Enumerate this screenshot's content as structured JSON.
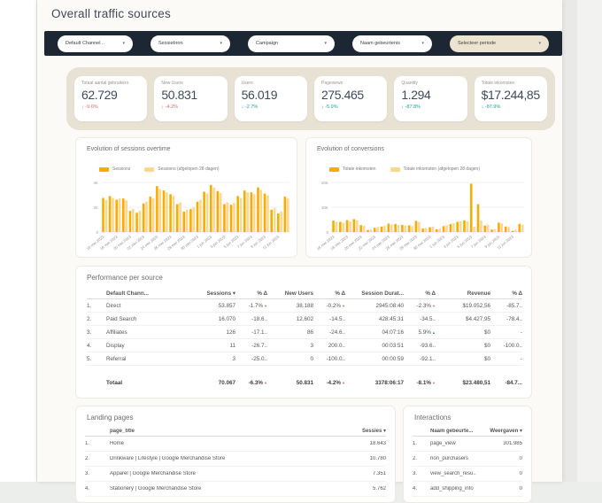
{
  "page": {
    "title": "Overall traffic sources"
  },
  "colors": {
    "navy": "#1d2633",
    "beige_band": "#e7e2d4",
    "pill_beige": "#ece4d0",
    "orange": "#f9ab00",
    "orange_light": "#fbd78f",
    "red": "#dd6a66",
    "green": "#14a68e"
  },
  "filters": [
    {
      "label": "Default Channel ..",
      "style": "white",
      "width": 85
    },
    {
      "label": "Sessiebron",
      "style": "white",
      "width": 90
    },
    {
      "label": "Campaign",
      "style": "white",
      "width": 98
    },
    {
      "label": "Naam gebeurtenis",
      "style": "white",
      "width": 90
    },
    {
      "label": "Selecteer periode",
      "style": "beige",
      "width": 112
    }
  ],
  "kpis": [
    {
      "label": "Totaal aantal gebruikers",
      "value": "62.729",
      "arrow": "↓",
      "delta": "-9.6%",
      "tone": "red"
    },
    {
      "label": "New Users",
      "value": "50.831",
      "arrow": "↓",
      "delta": "-4.2%",
      "tone": "red"
    },
    {
      "label": "Users",
      "value": "56.019",
      "arrow": "↓",
      "delta": "-2.7%",
      "tone": "green"
    },
    {
      "label": "Pageviews",
      "value": "275.465",
      "arrow": "↓",
      "delta": "-5.9%",
      "tone": "green"
    },
    {
      "label": "Quantity",
      "value": "1.294",
      "arrow": "↓",
      "delta": "-87.8%",
      "tone": "green"
    },
    {
      "label": "Totale inkomsten",
      "value": "$17.244,85",
      "arrow": "↓",
      "delta": "-87.9%",
      "tone": "green"
    }
  ],
  "chart_data": [
    {
      "type": "bar",
      "title": "Evolution of sessions overtime",
      "x": [
        "16 mei 2023",
        "17 mei 2023",
        "18 mei 2023",
        "19 mei 2023",
        "20 mei 2023",
        "21 mei 2023",
        "22 mei 2023",
        "23 mei 2023",
        "24 mei 2023",
        "25 mei 2023",
        "26 mei 2023",
        "27 mei 2023",
        "28 mei 2023",
        "29 mei 2023",
        "30 mei 2023",
        "31 mei 2023",
        "1 jun 2023",
        "2 jun 2023",
        "3 jun 2023",
        "4 jun 2023",
        "5 jun 2023",
        "6 jun 2023",
        "7 jun 2023",
        "8 jun 2023",
        "9 jun 2023",
        "10 jun 2023",
        "11 jun 2023",
        "12 jun 2023"
      ],
      "x_tick_every": 2,
      "series": [
        {
          "name": "Sessions",
          "values": [
            2750,
            2900,
            2600,
            2700,
            1700,
            1550,
            2300,
            2850,
            3700,
            3350,
            3050,
            2250,
            1650,
            1850,
            2450,
            3250,
            3800,
            3300,
            2250,
            2200,
            2900,
            3350,
            3200,
            3600,
            3100,
            1800,
            1500,
            2850
          ]
        },
        {
          "name": "Sessions (afgelopen 28 dagen)",
          "values": [
            2600,
            2750,
            2700,
            2550,
            1850,
            1700,
            2450,
            2700,
            3450,
            3200,
            2900,
            2400,
            1800,
            2000,
            2600,
            3100,
            3600,
            3150,
            2400,
            2350,
            2750,
            3200,
            3050,
            3400,
            2950,
            1950,
            1650,
            2700
          ]
        }
      ],
      "ylim": [
        0,
        4000
      ],
      "yticks": [
        {
          "label": "4K",
          "v": 4000
        },
        {
          "label": "2K",
          "v": 2000
        },
        {
          "label": "0",
          "v": 0
        }
      ],
      "legend_position": "top",
      "grid": true
    },
    {
      "type": "bar",
      "title": "Evolution of conversions",
      "x": [
        "16 mei 2023",
        "17 mei 2023",
        "18 mei 2023",
        "19 mei 2023",
        "20 mei 2023",
        "21 mei 2023",
        "22 mei 2023",
        "23 mei 2023",
        "24 mei 2023",
        "25 mei 2023",
        "26 mei 2023",
        "27 mei 2023",
        "28 mei 2023",
        "29 mei 2023",
        "30 mei 2023",
        "31 mei 2023",
        "1 jun 2023",
        "2 jun 2023",
        "3 jun 2023",
        "4 jun 2023",
        "5 jun 2023",
        "6 jun 2023",
        "7 jun 2023",
        "8 jun 2023",
        "9 jun 2023",
        "10 jun 2023",
        "11 jun 2023",
        "12 jun 2023"
      ],
      "x_tick_every": 2,
      "series": [
        {
          "name": "Totale inkomsten",
          "values": [
            4600,
            4100,
            4800,
            5200,
            2800,
            800,
            1700,
            2200,
            3400,
            3200,
            2900,
            2700,
            4500,
            1400,
            1900,
            1100,
            2400,
            3200,
            4100,
            4700,
            19500,
            11200,
            2600,
            1000,
            3800,
            2200,
            500,
            3300
          ]
        },
        {
          "name": "Totale inkomsten (afgelopen 28 dagen)",
          "values": [
            4200,
            3700,
            4300,
            4700,
            2500,
            1000,
            2000,
            2500,
            3100,
            2900,
            2600,
            2400,
            4100,
            1600,
            2200,
            1300,
            2700,
            3500,
            4400,
            4300,
            2100,
            4600,
            2900,
            1200,
            3500,
            2000,
            900,
            3000
          ]
        }
      ],
      "ylim": [
        0,
        20000
      ],
      "yticks": [
        {
          "label": "20K",
          "v": 20000
        },
        {
          "label": "10K",
          "v": 10000
        },
        {
          "label": "0",
          "v": 0
        }
      ],
      "legend_position": "top",
      "grid": true
    }
  ],
  "performance": {
    "title": "Performance per source",
    "headers": [
      "",
      "Default Chann...",
      "Sessions ▾",
      "% Δ",
      "New Users",
      "% Δ",
      "Session Durat...",
      "% Δ",
      "Revenue",
      "% Δ"
    ],
    "rows": [
      [
        "1.",
        "Direct",
        "53.857",
        {
          "t": "-1.7%",
          "dir": "down"
        },
        "38.188",
        {
          "t": "-0.2%",
          "dir": "down"
        },
        "2945:08:40",
        {
          "t": "-2.3%",
          "dir": "down"
        },
        "$19.052,56",
        "-85.7.."
      ],
      [
        "2.",
        "Paid Search",
        "16.070",
        "-18.6..",
        "12.602",
        "-14.5..",
        "428:45:31",
        "-34.5..",
        "$4.427,95",
        "-78.4.."
      ],
      [
        "3.",
        "Affiliates",
        "126",
        "-17.1..",
        "86",
        "-24.6..",
        "04:07:16",
        {
          "t": "5.9%",
          "dir": "up"
        },
        "$0",
        "-"
      ],
      [
        "4.",
        "Display",
        "11",
        "-26.7..",
        "3",
        "200.0..",
        "00:03:51",
        "-93.6..",
        "$0",
        "-100.0.."
      ],
      [
        "5.",
        "Referral",
        "3",
        "-25.0..",
        "0",
        "-100.0..",
        "00:00:59",
        "-92.1..",
        "$0",
        "-"
      ]
    ],
    "total": [
      "",
      "Totaal",
      "70.067",
      {
        "t": "-6.3%",
        "dir": "down"
      },
      "50.831",
      {
        "t": "-4.2%",
        "dir": "down"
      },
      "3378:06:17",
      {
        "t": "-8.1%",
        "dir": "down"
      },
      "$23.480,51",
      "-84.7..."
    ]
  },
  "landing_pages": {
    "title": "Landing pages",
    "headers": [
      "page_title",
      "Sessies ▾"
    ],
    "rows": [
      [
        "1.",
        "Home",
        "18.643"
      ],
      [
        "2.",
        "Drinkware | Lifestyle | Google Merchandise Store",
        "10.780"
      ],
      [
        "3.",
        "Apparel | Google Merchandise Store",
        "7.351"
      ],
      [
        "4.",
        "Stationery | Google Merchandise Store",
        "5.762"
      ]
    ]
  },
  "interactions": {
    "title": "Interactions",
    "headers": [
      "Naam gebeurte...",
      "Weergaven ▾"
    ],
    "rows": [
      [
        "1.",
        "page_view",
        "301.985"
      ],
      [
        "2.",
        "non_purchasers",
        "0"
      ],
      [
        "3.",
        "view_search_resu..",
        "0"
      ],
      [
        "4.",
        "add_shipping_info",
        "0"
      ]
    ]
  }
}
